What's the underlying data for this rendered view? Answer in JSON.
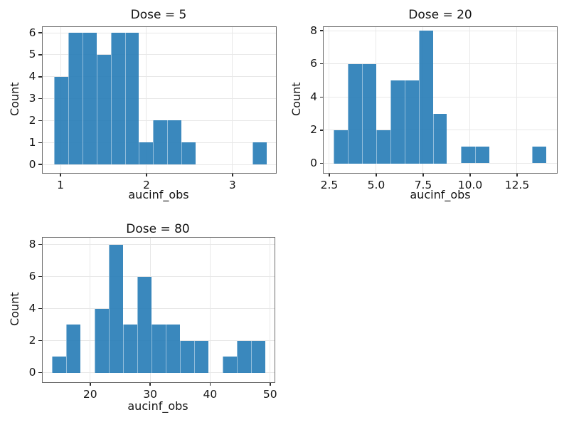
{
  "figure": {
    "background": "#ffffff"
  },
  "colors": {
    "bar_base": "#1f77b4",
    "bar_fill": "rgba(31,119,180,0.88)",
    "grid": "#e8e8e8",
    "frame": "#6d6d6d",
    "tick_mark": "#2b2b2b",
    "text": "#141414"
  },
  "chart_data": [
    {
      "type": "bar",
      "subtype": "histogram",
      "title": "Dose = 5",
      "xlabel": "aucinf_obs",
      "ylabel": "Count",
      "x_ticks": [
        1,
        2,
        3
      ],
      "x_tick_labels": [
        "1",
        "2",
        "3"
      ],
      "y_ticks": [
        0,
        1,
        2,
        3,
        4,
        5,
        6
      ],
      "y_tick_labels": [
        "0",
        "1",
        "2",
        "3",
        "4",
        "5",
        "6"
      ],
      "xlim": [
        0.78,
        3.51
      ],
      "ylim": [
        -0.4,
        6.31
      ],
      "grid": true,
      "legend": false,
      "bins": {
        "start": 0.923,
        "width": 0.165
      },
      "counts": [
        4,
        6,
        6,
        5,
        6,
        6,
        1,
        2,
        2,
        1,
        0,
        0,
        0,
        0,
        1
      ]
    },
    {
      "type": "bar",
      "subtype": "histogram",
      "title": "Dose = 20",
      "xlabel": "aucinf_obs",
      "ylabel": "Count",
      "x_ticks": [
        2.5,
        5.0,
        7.5,
        10.0,
        12.5
      ],
      "x_tick_labels": [
        "2.5",
        "5.0",
        "7.5",
        "10.0",
        "12.5"
      ],
      "y_ticks": [
        0,
        2,
        4,
        6,
        8
      ],
      "y_tick_labels": [
        "0",
        "2",
        "4",
        "6",
        "8"
      ],
      "xlim": [
        2.16,
        14.66
      ],
      "ylim": [
        -0.6,
        8.28
      ],
      "grid": true,
      "legend": false,
      "bins": {
        "start": 2.73,
        "width": 0.755
      },
      "counts": [
        2,
        6,
        6,
        2,
        5,
        5,
        8,
        3,
        0,
        1,
        1,
        0,
        0,
        0,
        1
      ]
    },
    {
      "type": "bar",
      "subtype": "histogram",
      "title": "Dose = 80",
      "xlabel": "aucinf_obs",
      "ylabel": "Count",
      "x_ticks": [
        20,
        30,
        40,
        50
      ],
      "x_tick_labels": [
        "20",
        "30",
        "40",
        "50"
      ],
      "y_ticks": [
        0,
        2,
        4,
        6,
        8
      ],
      "y_tick_labels": [
        "0",
        "2",
        "4",
        "6",
        "8"
      ],
      "xlim": [
        11.9,
        50.8
      ],
      "ylim": [
        -0.62,
        8.49
      ],
      "grid": true,
      "legend": false,
      "bins": {
        "start": 13.63,
        "width": 2.374
      },
      "counts": [
        1,
        3,
        0,
        4,
        8,
        3,
        6,
        3,
        3,
        2,
        2,
        0,
        1,
        2,
        2
      ]
    }
  ]
}
